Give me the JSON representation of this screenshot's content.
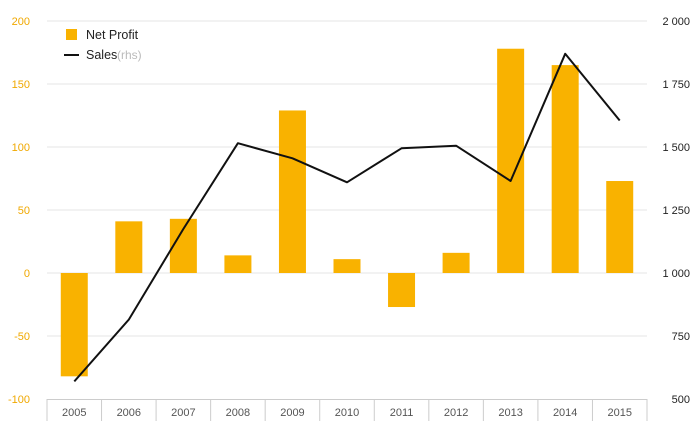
{
  "chart_data": {
    "type": "bar+line",
    "categories": [
      "2005",
      "2006",
      "2007",
      "2008",
      "2009",
      "2010",
      "2011",
      "2012",
      "2013",
      "2014",
      "2015"
    ],
    "series": [
      {
        "name": "Net Profit",
        "type": "bar",
        "axis": "left",
        "values": [
          -82,
          41,
          43,
          14,
          129,
          11,
          -27,
          16,
          178,
          165,
          73
        ]
      },
      {
        "name": "Sales",
        "type": "line",
        "axis": "right",
        "values": [
          570,
          815,
          1175,
          1515,
          1455,
          1360,
          1495,
          1505,
          1365,
          1870,
          1605
        ]
      }
    ],
    "legend": {
      "position": "top-left",
      "items": [
        {
          "label": "Net Profit",
          "suffix": ""
        },
        {
          "label": "Sales",
          "suffix": "(rhs)"
        }
      ]
    },
    "y_left": {
      "range": [
        -100,
        200
      ],
      "ticks": [
        -100,
        -50,
        0,
        50,
        100,
        150,
        200
      ],
      "tick_labels": [
        "-100",
        "-50",
        "0",
        "50",
        "100",
        "150",
        "200"
      ]
    },
    "y_right": {
      "range": [
        500,
        2000
      ],
      "ticks": [
        500,
        750,
        1000,
        1250,
        1500,
        1750,
        2000
      ],
      "tick_labels": [
        "500",
        "750",
        "1 000",
        "1 250",
        "1 500",
        "1 750",
        "2 000"
      ]
    },
    "grid": true,
    "colors": {
      "bar": "#f9b200",
      "line": "#111111",
      "left_tick": "#f0a800",
      "grid": "#e6e6e6",
      "axis": "#cccccc"
    }
  }
}
